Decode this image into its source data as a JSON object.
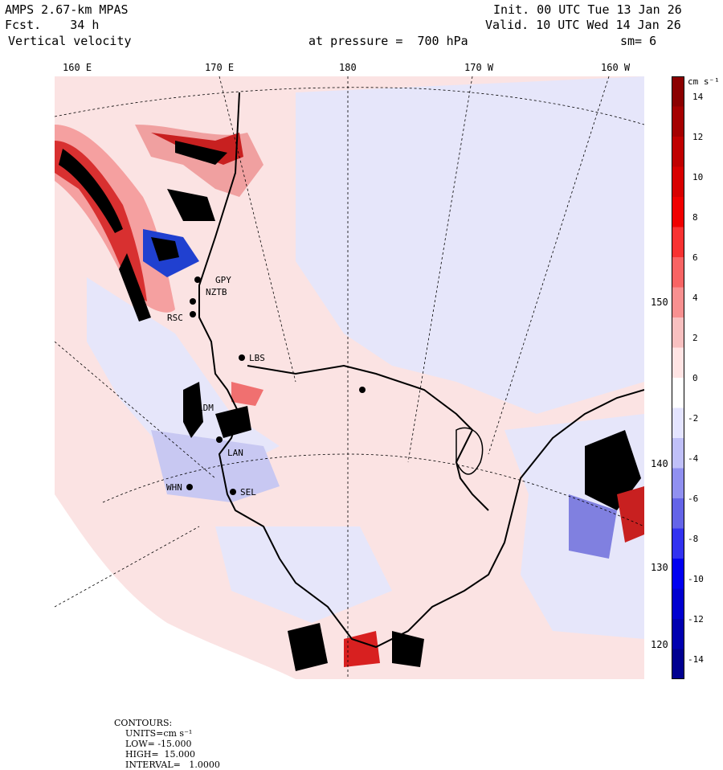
{
  "header": {
    "model": "AMPS 2.67-km MPAS",
    "fcst": "Fcst.    34 h",
    "field": "Vertical velocity",
    "init": "Init. 00 UTC Tue 13 Jan 26",
    "valid": "Valid. 10 UTC Wed 14 Jan 26",
    "pressure": "at pressure =  700 hPa",
    "smooth": "sm= 6"
  },
  "longitude_labels": [
    "160 E",
    "170 E",
    "180",
    "170 W",
    "160 W"
  ],
  "right_labels": [
    "150 W",
    "140 W",
    "130 W",
    "120 W"
  ],
  "stations": [
    "GPY",
    "NZTB",
    "RSC",
    "LBS",
    "LDM",
    "LAN",
    "WHN",
    "SEL"
  ],
  "legend": {
    "units": "cm s⁻¹",
    "ticks": [
      "14",
      "12",
      "10",
      "8",
      "6",
      "4",
      "2",
      "0",
      "-2",
      "-4",
      "-6",
      "-8",
      "-10",
      "-12",
      "-14"
    ],
    "colors": [
      "#8b0000",
      "#a50000",
      "#c00000",
      "#d80000",
      "#f00000",
      "#f83232",
      "#f86464",
      "#f89090",
      "#f8c0c0",
      "#ffe4e4",
      "#ffffff",
      "#e4e4ff",
      "#c0c0f8",
      "#9090f0",
      "#6464e8",
      "#3232f0",
      "#0000f0",
      "#0000d0",
      "#0000b0",
      "#000090"
    ]
  },
  "footer": {
    "contours": "CONTOURS:",
    "units": "UNITS=cm s⁻¹",
    "low": "LOW= -15.000",
    "high": "HIGH=  15.000",
    "interval": "INTERVAL=   1.0000"
  }
}
